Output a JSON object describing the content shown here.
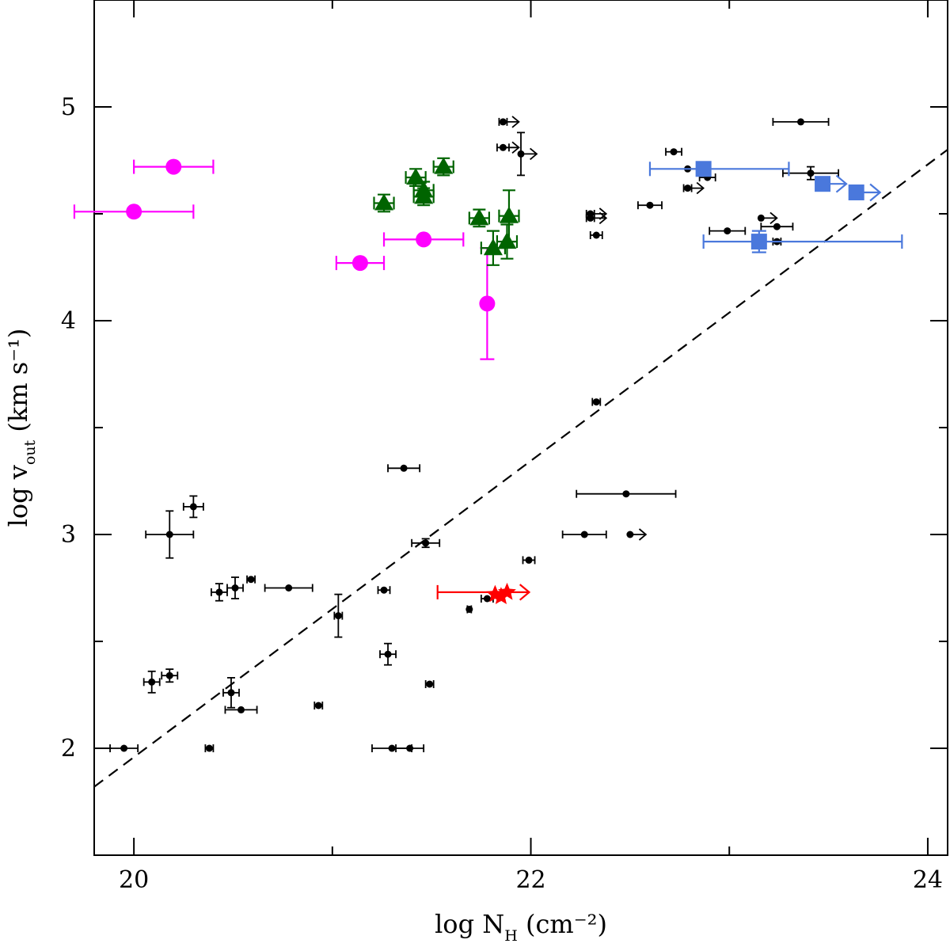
{
  "chart_data": {
    "type": "scatter",
    "title": "",
    "xlabel": {
      "main": "log N",
      "sub": "H",
      "unit": " (cm⁻²)"
    },
    "ylabel": {
      "main": "log v",
      "sub": "out",
      "unit": " (km s⁻¹)"
    },
    "xlim": [
      19.8,
      24.1
    ],
    "ylim": [
      1.5,
      5.5
    ],
    "x_ticks_major": [
      20,
      22,
      24
    ],
    "x_ticks_minor": [
      21,
      23
    ],
    "y_ticks_major": [
      2,
      3,
      4,
      5
    ],
    "y_ticks_minor": [
      2.5,
      3.5,
      4.5
    ],
    "grid": false,
    "legend": "none",
    "colors": {
      "black": "#000000",
      "magenta": "#ff00ff",
      "green": "#006400",
      "blue": "#4a78dc",
      "red": "#ff0000",
      "fit": "#000000"
    },
    "fit_line": {
      "style": "dashed",
      "points": [
        [
          19.8,
          1.82
        ],
        [
          24.1,
          4.8
        ]
      ]
    },
    "series": [
      {
        "marker": "circle-small",
        "color": "black",
        "points": [
          {
            "x": 19.95,
            "y": 2.0,
            "xerr": 0.07
          },
          {
            "x": 20.09,
            "y": 2.31,
            "xerr": 0.04,
            "yerr": 0.05
          },
          {
            "x": 20.18,
            "y": 2.34,
            "xerr": 0.04,
            "yerr": 0.03
          },
          {
            "x": 20.18,
            "y": 3.0,
            "xerr": 0.12,
            "yerr": 0.11
          },
          {
            "x": 20.3,
            "y": 3.13,
            "xerr": 0.05,
            "yerr": 0.05
          },
          {
            "x": 20.38,
            "y": 2.0,
            "xerr": 0.02
          },
          {
            "x": 20.43,
            "y": 2.73,
            "xerr": 0.04,
            "yerr": 0.04
          },
          {
            "x": 20.49,
            "y": 2.26,
            "xerr": 0.04,
            "yerr": 0.07
          },
          {
            "x": 20.51,
            "y": 2.75,
            "xerr": 0.04,
            "yerr": 0.05
          },
          {
            "x": 20.54,
            "y": 2.18,
            "xerr": 0.08
          },
          {
            "x": 20.59,
            "y": 2.79,
            "xerr": 0.02
          },
          {
            "x": 20.78,
            "y": 2.75,
            "xerr": 0.12
          },
          {
            "x": 20.93,
            "y": 2.2,
            "xerr": 0.02
          },
          {
            "x": 21.03,
            "y": 2.62,
            "xerr": 0.02,
            "yerr": 0.1
          },
          {
            "x": 21.26,
            "y": 2.74,
            "xerr": 0.03
          },
          {
            "x": 21.28,
            "y": 2.44,
            "xerr": 0.04,
            "yerr": 0.05
          },
          {
            "x": 21.3,
            "y": 2.0,
            "xerr": 0.1
          },
          {
            "x": 21.36,
            "y": 3.31,
            "xerr": 0.08
          },
          {
            "x": 21.39,
            "y": 2.0,
            "xerr": 0.07
          },
          {
            "x": 21.47,
            "y": 2.96,
            "xerr": 0.07,
            "yerr": 0.02
          },
          {
            "x": 21.49,
            "y": 2.3,
            "xerr": 0.02
          },
          {
            "x": 21.69,
            "y": 2.65,
            "xerr": 0.01
          },
          {
            "x": 21.78,
            "y": 2.7,
            "xerr": 0.03
          },
          {
            "x": 21.86,
            "y": 4.93,
            "xerr": 0.02,
            "upper": true
          },
          {
            "x": 21.86,
            "y": 4.81,
            "xerr": 0.03,
            "upper": true
          },
          {
            "x": 21.95,
            "y": 4.78,
            "yerr": 0.1,
            "upper": true
          },
          {
            "x": 21.99,
            "y": 2.88,
            "xerr": 0.03
          },
          {
            "x": 22.27,
            "y": 3.0,
            "xerr": 0.11
          },
          {
            "x": 22.3,
            "y": 4.5,
            "xerr": 0.02,
            "upper": true
          },
          {
            "x": 22.3,
            "y": 4.48,
            "xerr": 0.02,
            "upper": true
          },
          {
            "x": 22.33,
            "y": 4.4,
            "xerr": 0.03
          },
          {
            "x": 22.33,
            "y": 3.62,
            "xerr": 0.02
          },
          {
            "x": 22.48,
            "y": 3.19,
            "xerr": 0.25
          },
          {
            "x": 22.5,
            "y": 3.0,
            "upper": true
          },
          {
            "x": 22.6,
            "y": 4.54,
            "xerr": 0.06
          },
          {
            "x": 22.72,
            "y": 4.79,
            "xerr": 0.04
          },
          {
            "x": 22.79,
            "y": 4.71,
            "upper": true
          },
          {
            "x": 22.79,
            "y": 4.62,
            "xerr": 0.02,
            "upper": true
          },
          {
            "x": 22.89,
            "y": 4.67,
            "xerr": 0.04
          },
          {
            "x": 22.99,
            "y": 4.42,
            "xerr": 0.09
          },
          {
            "x": 23.16,
            "y": 4.48,
            "upper": true
          },
          {
            "x": 23.24,
            "y": 4.44,
            "xerr": 0.08
          },
          {
            "x": 23.24,
            "y": 4.37,
            "xerr": 0.02
          },
          {
            "x": 23.36,
            "y": 4.93,
            "xerr": 0.14
          },
          {
            "x": 23.41,
            "y": 4.69,
            "xerr": 0.14,
            "yerr": 0.03
          }
        ]
      },
      {
        "marker": "circle",
        "color": "magenta",
        "points": [
          {
            "x": 20.0,
            "y": 4.51,
            "xerr": 0.3
          },
          {
            "x": 20.2,
            "y": 4.72,
            "xerr": 0.2
          },
          {
            "x": 21.14,
            "y": 4.27,
            "xerr": 0.12
          },
          {
            "x": 21.46,
            "y": 4.38,
            "xerr": 0.2
          },
          {
            "x": 21.78,
            "y": 4.08,
            "yerr": 0.26
          }
        ]
      },
      {
        "marker": "triangle",
        "color": "green",
        "points": [
          {
            "x": 21.26,
            "y": 4.55,
            "xerr": 0.05,
            "yerr": 0.04
          },
          {
            "x": 21.42,
            "y": 4.67,
            "xerr": 0.05,
            "yerr": 0.04
          },
          {
            "x": 21.46,
            "y": 4.61,
            "xerr": 0.05,
            "yerr": 0.04
          },
          {
            "x": 21.46,
            "y": 4.58,
            "xerr": 0.05,
            "yerr": 0.04
          },
          {
            "x": 21.56,
            "y": 4.72,
            "xerr": 0.05,
            "yerr": 0.04
          },
          {
            "x": 21.74,
            "y": 4.48,
            "xerr": 0.05,
            "yerr": 0.04
          },
          {
            "x": 21.81,
            "y": 4.34,
            "xerr": 0.06,
            "yerr": 0.08
          },
          {
            "x": 21.88,
            "y": 4.37,
            "xerr": 0.05,
            "yerr": 0.08
          },
          {
            "x": 21.89,
            "y": 4.49,
            "xerr": 0.05,
            "yerr": 0.12
          }
        ]
      },
      {
        "marker": "square",
        "color": "blue",
        "points": [
          {
            "x": 22.87,
            "y": 4.71,
            "xerr_lo": 0.27,
            "xerr_hi": 0.43
          },
          {
            "x": 23.15,
            "y": 4.37,
            "xerr_lo": 0.28,
            "xerr_hi": 0.72,
            "yerr": 0.05
          },
          {
            "x": 23.47,
            "y": 4.64,
            "upper": true
          },
          {
            "x": 23.64,
            "y": 4.6,
            "upper": true
          }
        ]
      },
      {
        "marker": "star",
        "color": "red",
        "points": [
          {
            "x": 21.88,
            "y": 2.73,
            "xerr_lo": 0.35,
            "upper": true
          },
          {
            "x": 21.82,
            "y": 2.72
          },
          {
            "x": 21.85,
            "y": 2.71
          }
        ]
      }
    ]
  }
}
